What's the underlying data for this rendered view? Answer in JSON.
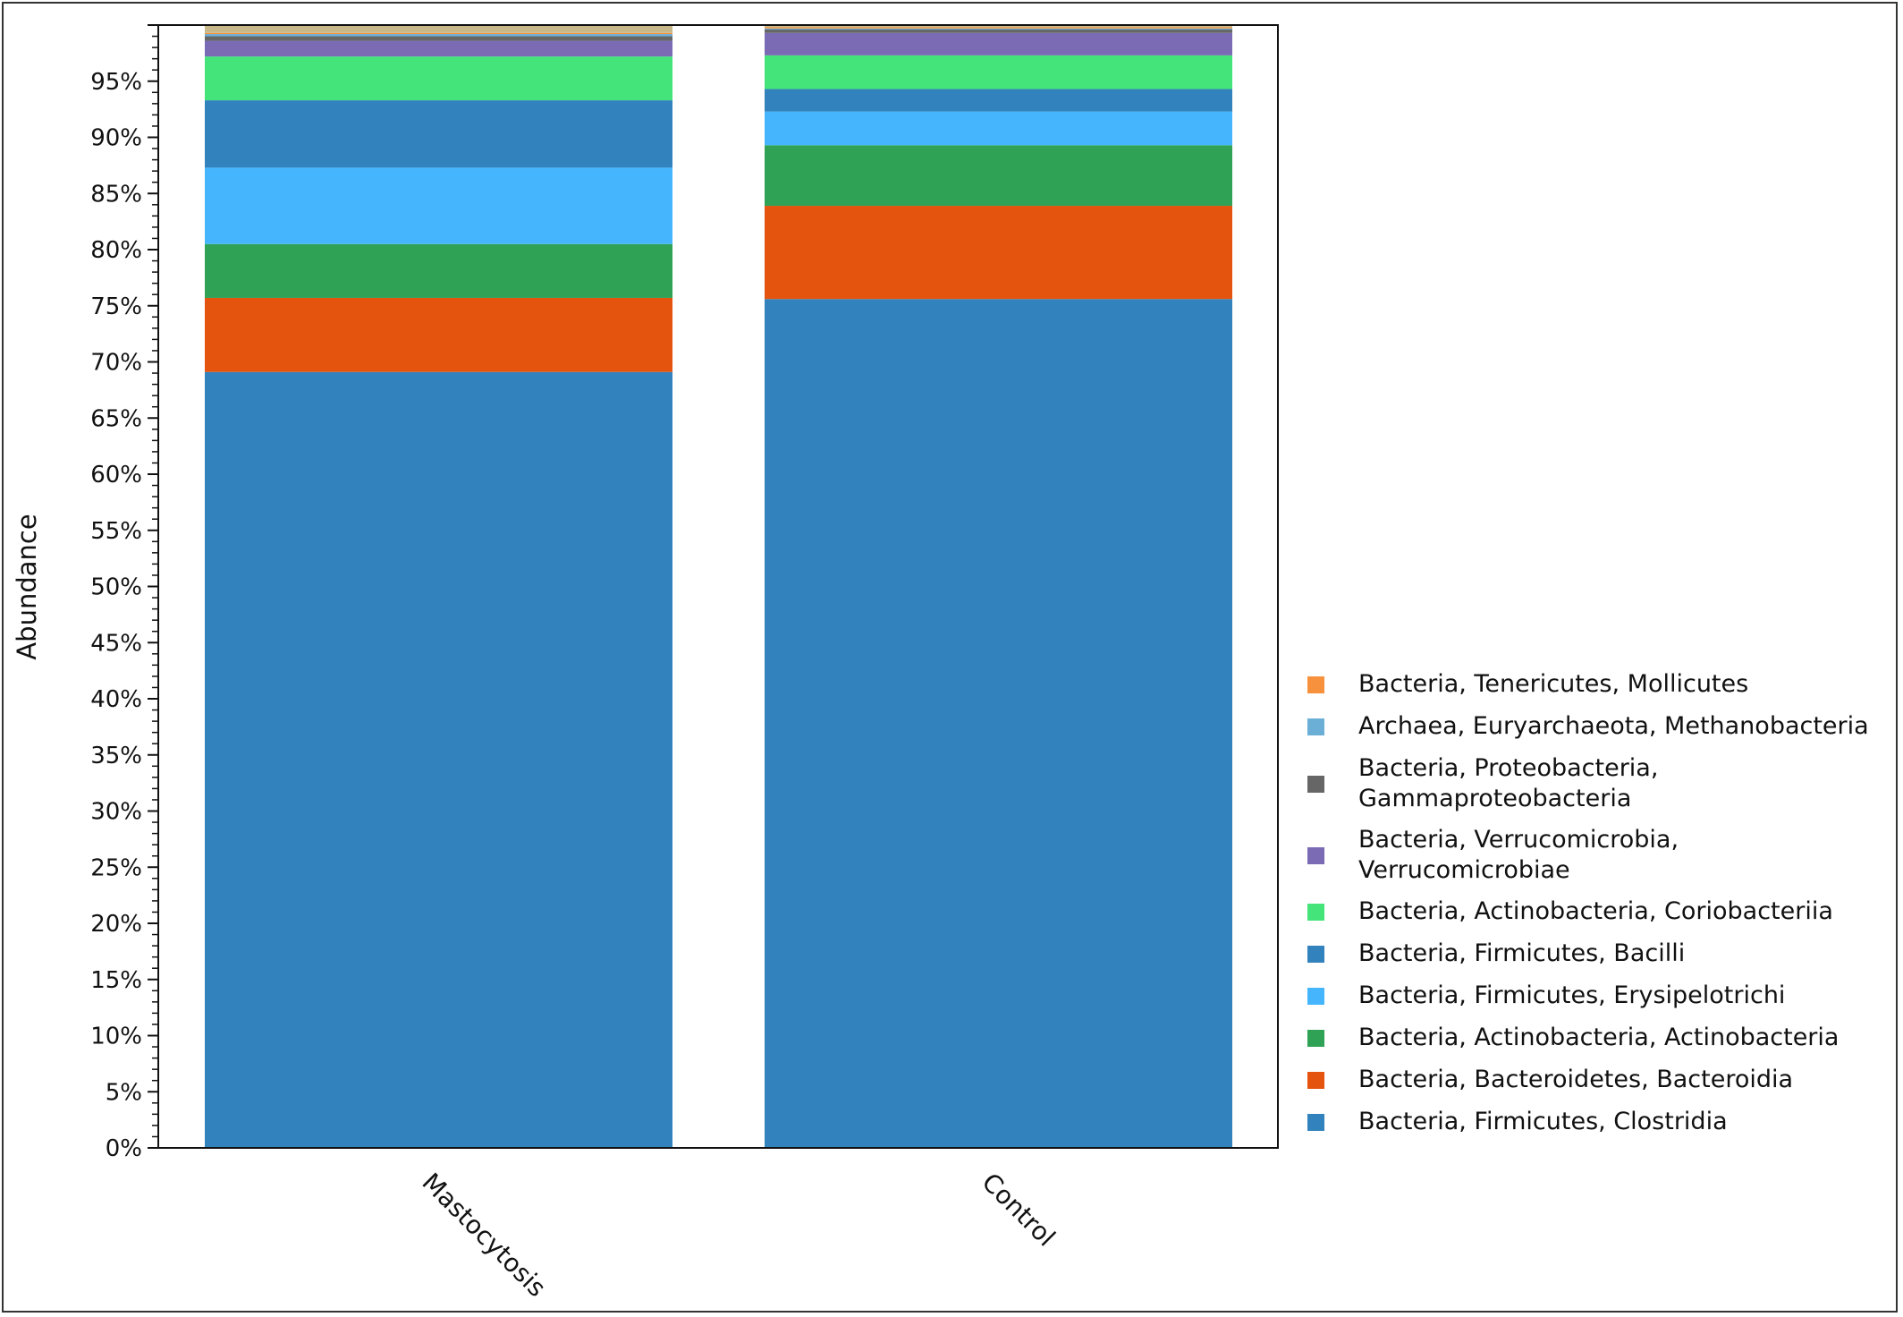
{
  "chart_data": {
    "type": "bar",
    "stacked": true,
    "ylabel": "Abundance",
    "xlabel": "",
    "ylim": [
      0,
      100
    ],
    "y_ticks": [
      "0%",
      "5%",
      "10%",
      "15%",
      "20%",
      "25%",
      "30%",
      "35%",
      "40%",
      "45%",
      "50%",
      "55%",
      "60%",
      "65%",
      "70%",
      "75%",
      "80%",
      "85%",
      "90%",
      "95%"
    ],
    "categories": [
      "Mastocytosis",
      "Control"
    ],
    "legend_position": "right",
    "series": [
      {
        "name": "Bacteria, Firmicutes, Clostridia",
        "color": "#3282be",
        "values": [
          69.1,
          75.6
        ]
      },
      {
        "name": "Bacteria, Bacteroidetes, Bacteroidia",
        "color": "#e4540f",
        "values": [
          6.6,
          8.3
        ]
      },
      {
        "name": "Bacteria, Actinobacteria, Actinobacteria",
        "color": "#2fa255",
        "values": [
          4.8,
          5.4
        ]
      },
      {
        "name": "Bacteria, Firmicutes, Erysipelotrichi",
        "color": "#45b6fe",
        "values": [
          6.8,
          3.0
        ]
      },
      {
        "name": "Bacteria, Firmicutes, Bacilli",
        "color": "#3282be",
        "values": [
          6.0,
          2.0
        ]
      },
      {
        "name": "Bacteria, Actinobacteria, Coriobacteriia",
        "color": "#44e47a",
        "values": [
          3.9,
          3.0
        ]
      },
      {
        "name": "Bacteria, Verrucomicrobia, Verrucomicrobiae",
        "color": "#7b6bb5",
        "values": [
          1.4,
          2.0
        ]
      },
      {
        "name": "Bacteria, Proteobacteria, Gammaproteobacteria",
        "color": "#666666",
        "values": [
          0.4,
          0.3
        ]
      },
      {
        "name": "Archaea, Euryarchaeota, Methanobacteria",
        "color": "#6baed6",
        "values": [
          0.2,
          0.1
        ]
      },
      {
        "name": "Bacteria, Tenericutes, Mollicutes",
        "color": "#f8913d",
        "values": [
          0.1,
          0.1
        ]
      }
    ],
    "legend": [
      {
        "lines": [
          "Bacteria, Tenericutes, Mollicutes"
        ],
        "color": "#f8913d"
      },
      {
        "lines": [
          "Archaea, Euryarchaeota, Methanobacteria"
        ],
        "color": "#6baed6"
      },
      {
        "lines": [
          "Bacteria, Proteobacteria,",
          "Gammaproteobacteria"
        ],
        "color": "#666666"
      },
      {
        "lines": [
          "Bacteria, Verrucomicrobia,",
          "Verrucomicrobiae"
        ],
        "color": "#7b6bb5"
      },
      {
        "lines": [
          "Bacteria, Actinobacteria, Coriobacteriia"
        ],
        "color": "#44e47a"
      },
      {
        "lines": [
          "Bacteria, Firmicutes, Bacilli"
        ],
        "color": "#3282be"
      },
      {
        "lines": [
          "Bacteria, Firmicutes, Erysipelotrichi"
        ],
        "color": "#45b6fe"
      },
      {
        "lines": [
          "Bacteria, Actinobacteria, Actinobacteria"
        ],
        "color": "#2fa255"
      },
      {
        "lines": [
          "Bacteria, Bacteroidetes, Bacteroidia"
        ],
        "color": "#e4540f"
      },
      {
        "lines": [
          "Bacteria, Firmicutes, Clostridia"
        ],
        "color": "#3282be"
      }
    ]
  }
}
